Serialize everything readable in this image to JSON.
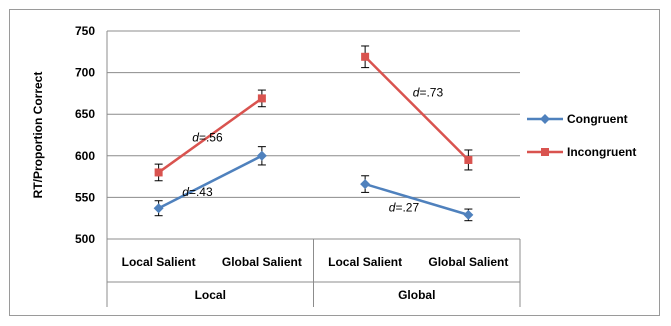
{
  "chart_data": {
    "type": "line",
    "title": "",
    "ylabel": "RT/Proportion Correct",
    "xlabel": "",
    "ylim": [
      500,
      750
    ],
    "yticks": [
      500,
      550,
      600,
      650,
      700,
      750
    ],
    "ytick_labels": [
      "500",
      "550",
      "600",
      "650",
      "700",
      "750"
    ],
    "grid": true,
    "legend_position": "right",
    "groups": [
      {
        "label": "Local",
        "categories": [
          "Local Salient",
          "Global Salient"
        ]
      },
      {
        "label": "Global",
        "categories": [
          "Local Salient",
          "Global Salient"
        ]
      }
    ],
    "series": [
      {
        "name": "Congruent",
        "color": "#4f81bd",
        "marker": "diamond",
        "values": [
          [
            537,
            600
          ],
          [
            566,
            529
          ]
        ],
        "errors": [
          [
            9,
            11
          ],
          [
            10,
            7
          ]
        ]
      },
      {
        "name": "Incongruent",
        "color": "#d9534f",
        "marker": "square",
        "values": [
          [
            580,
            669
          ],
          [
            719,
            595
          ]
        ],
        "errors": [
          [
            10,
            10
          ],
          [
            13,
            12
          ]
        ]
      }
    ],
    "annotations": [
      {
        "group": 0,
        "series": 1,
        "prefix": "d",
        "text": "=.56"
      },
      {
        "group": 0,
        "series": 0,
        "prefix": "d",
        "text": "=.43"
      },
      {
        "group": 1,
        "series": 1,
        "prefix": "d",
        "text": "=.73"
      },
      {
        "group": 1,
        "series": 0,
        "prefix": "d",
        "text": "=.27"
      }
    ]
  }
}
